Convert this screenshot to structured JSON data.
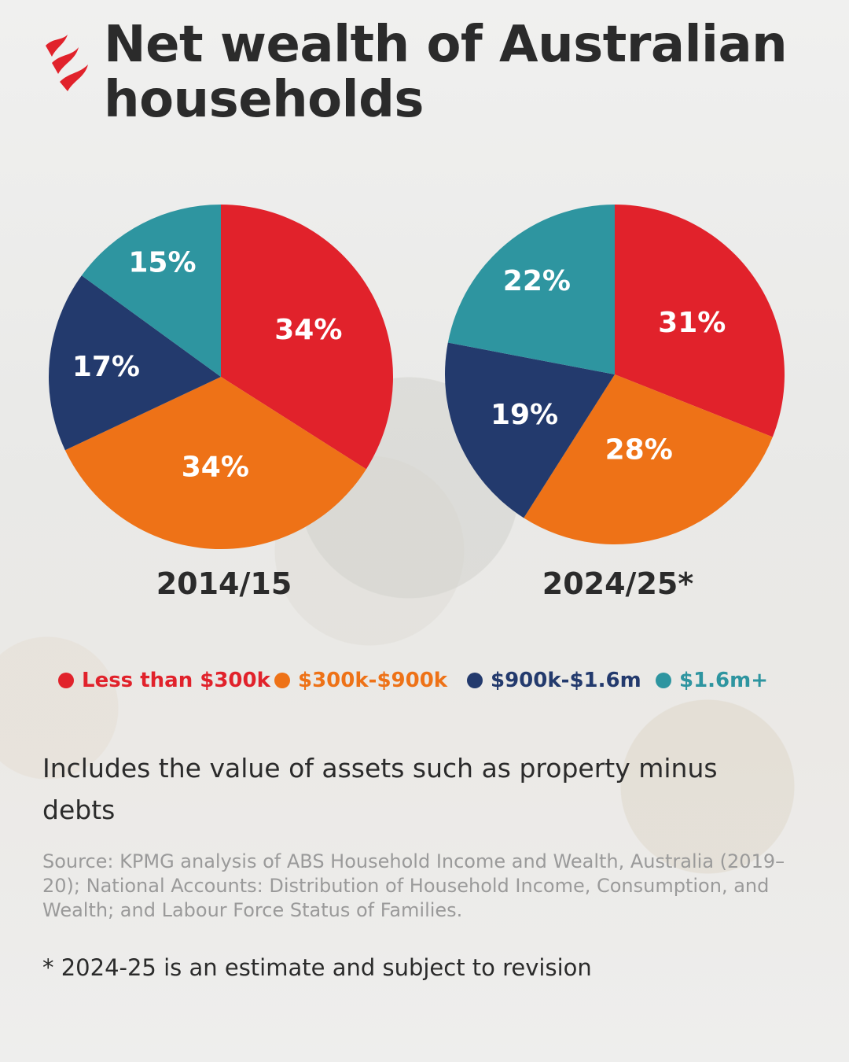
{
  "title": "Net wealth of Australian households",
  "colors": {
    "accent": "#e1222b",
    "less_than_300k": "#e1222b",
    "300k_900k": "#ee7217",
    "900k_1_6m": "#233a6d",
    "1_6m_plus": "#2e95a0",
    "text": "#2b2b2b",
    "source_text": "#9a9a9a"
  },
  "logo": {
    "icon": "sbs-wave-logo"
  },
  "chart_data": [
    {
      "type": "pie",
      "title": "2014/15",
      "categories": [
        "Less than $300k",
        "$300k-$900k",
        "$900k-$1.6m",
        "$1.6m+"
      ],
      "values": [
        34,
        34,
        17,
        15
      ],
      "labels": [
        "34%",
        "34%",
        "17%",
        "15%"
      ],
      "colors": [
        "#e1222b",
        "#ee7217",
        "#233a6d",
        "#2e95a0"
      ]
    },
    {
      "type": "pie",
      "title": "2024/25*",
      "categories": [
        "Less than $300k",
        "$300k-$900k",
        "$900k-$1.6m",
        "$1.6m+"
      ],
      "values": [
        31,
        28,
        19,
        22
      ],
      "labels": [
        "31%",
        "28%",
        "19%",
        "22%"
      ],
      "colors": [
        "#e1222b",
        "#ee7217",
        "#233a6d",
        "#2e95a0"
      ]
    }
  ],
  "legend": [
    {
      "label": "Less than $300k",
      "color": "#e1222b"
    },
    {
      "label": "$300k-$900k",
      "color": "#ee7217"
    },
    {
      "label": "$900k-$1.6m",
      "color": "#233a6d"
    },
    {
      "label": "$1.6m+",
      "color": "#2e95a0"
    }
  ],
  "note": "Includes the value of assets such as property minus debts",
  "source": "Source: KPMG analysis of ABS Household Income and Wealth, Australia (2019–20); National Accounts: Distribution of Household Income, Consumption, and Wealth; and Labour Force Status of Families.",
  "footnote": "* 2024-25 is an estimate and subject to revision"
}
